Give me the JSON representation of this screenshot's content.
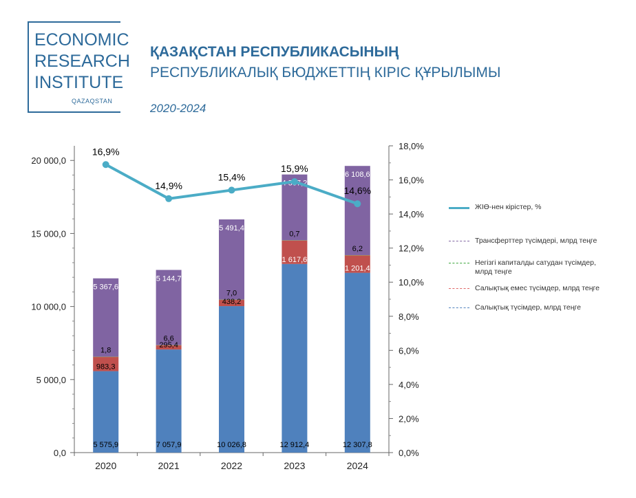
{
  "logo": {
    "line1": "ECONOMIC",
    "line2": "RESEARCH",
    "line3": "INSTITUTE",
    "sub": "QAZAQSTAN"
  },
  "header": {
    "title_line1": "ҚАЗАҚСТАН РЕСПУБЛИКАСЫНЫҢ",
    "title_line2": "РЕСПУБЛИКАЛЫҚ БЮДЖЕТТІҢ КІРІС ҚҰРЫЛЫМЫ",
    "period": "2020-2024"
  },
  "colors": {
    "tax": "#4f81bd",
    "nontax": "#c0504d",
    "capital": "#9bbb59",
    "transfers": "#8064a2",
    "gdp_line": "#4bacc6",
    "brand": "#2d6a9a"
  },
  "chart_data": {
    "type": "bar",
    "stacked": true,
    "categories": [
      "2020",
      "2021",
      "2022",
      "2023",
      "2024"
    ],
    "series": [
      {
        "name": "Салықтық түсімдер, млрд теңге",
        "values": [
          5575.9,
          7057.9,
          10026.8,
          12912.4,
          12307.8
        ],
        "labels": [
          "5 575,9",
          "7 057,9",
          "10 026,8",
          "12 912,4",
          "12 307,8"
        ]
      },
      {
        "name": "Салықтық емес түсімдер, млрд теңге",
        "values": [
          983.3,
          295.4,
          438.2,
          1617.6,
          1201.4
        ],
        "labels": [
          "983,3",
          "295,4",
          "438,2",
          "1 617,6",
          "1 201,4"
        ]
      },
      {
        "name": "Негізгі капиталды сатудан түсімдер, млрд теңге",
        "values": [
          1.8,
          6.6,
          7.0,
          0.7,
          6.2
        ],
        "labels": [
          "1,8",
          "6,6",
          "7,0",
          "0,7",
          "6,2"
        ]
      },
      {
        "name": "Трансферттер түсімдері, млрд теңге",
        "values": [
          5367.6,
          5144.7,
          5491.4,
          4507.2,
          6108.6
        ],
        "labels": [
          "5 367,6",
          "5 144,7",
          "5 491,4",
          "4 507,2",
          "6 108,6"
        ]
      }
    ],
    "line_series": {
      "name": "ЖІӨ-нен кірістер, %",
      "axis": "right",
      "values": [
        16.9,
        14.9,
        15.4,
        15.9,
        14.6
      ],
      "labels": [
        "16,9%",
        "14,9%",
        "15,4%",
        "15,9%",
        "14,6%"
      ]
    },
    "ylim": [
      0,
      21000
    ],
    "y2lim": [
      0,
      18
    ],
    "y_ticks": [
      "0,0",
      "5 000,0",
      "10 000,0",
      "15 000,0",
      "20 000,0"
    ],
    "y_tick_values": [
      0,
      5000,
      10000,
      15000,
      20000
    ],
    "y2_ticks": [
      "0,0%",
      "2,0%",
      "4,0%",
      "6,0%",
      "8,0%",
      "10,0%",
      "12,0%",
      "14,0%",
      "16,0%",
      "18,0%"
    ],
    "y2_tick_values": [
      0,
      2,
      4,
      6,
      8,
      10,
      12,
      14,
      16,
      18
    ],
    "legend_placement": "right",
    "grid": false
  },
  "legend": [
    {
      "label": "ЖІӨ-нен кірістер, %",
      "color": "#4bacc6",
      "style": "solid"
    },
    {
      "label": "Трансферттер түсімдері, млрд теңге",
      "color": "#8064a2",
      "style": "dashed"
    },
    {
      "label": "Негізгі капиталды сатудан түсімдер, млрд теңге",
      "color": "#3aa63a",
      "style": "dashed"
    },
    {
      "label": "Салықтық емес түсімдер, млрд теңге",
      "color": "#e06666",
      "style": "dashed"
    },
    {
      "label": "Салықтық түсімдер, млрд теңге",
      "color": "#4f81bd",
      "style": "dashed"
    }
  ]
}
